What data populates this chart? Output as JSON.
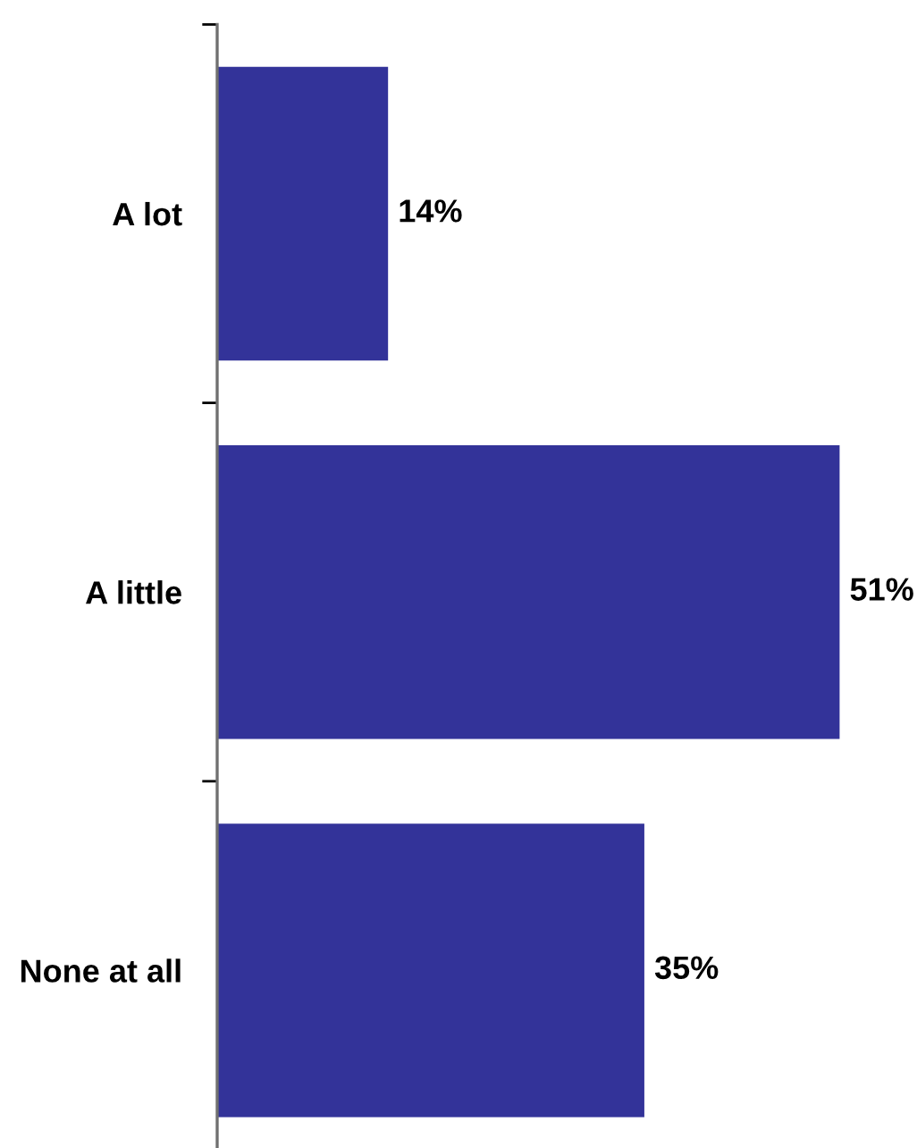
{
  "chart_data": {
    "type": "bar",
    "orientation": "horizontal",
    "categories": [
      "A lot",
      "A little",
      "None at all"
    ],
    "values": [
      14,
      51,
      35
    ],
    "color": "#333399",
    "value_labels": [
      "14%",
      "51%",
      "35%"
    ],
    "tick_labels": "y"
  }
}
